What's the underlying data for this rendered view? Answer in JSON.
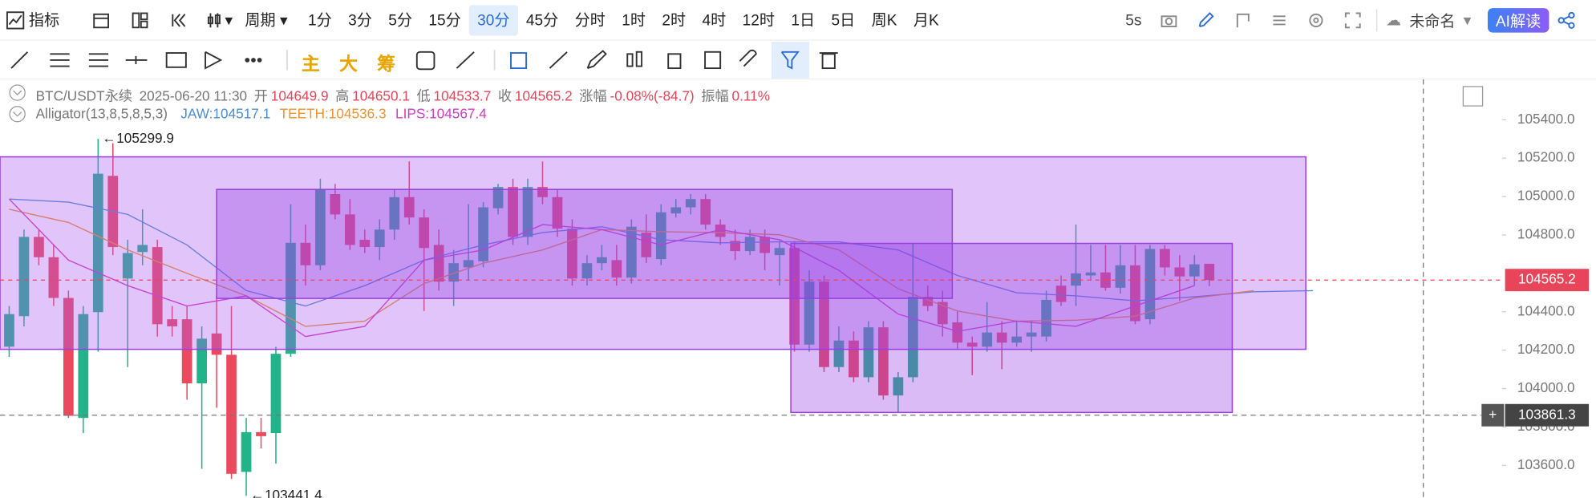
{
  "toolbar": {
    "indicators": "指标",
    "period": "周期",
    "intervals": [
      "1分",
      "3分",
      "5分",
      "15分",
      "30分",
      "45分",
      "分时",
      "1时",
      "2时",
      "4时",
      "12时",
      "1日",
      "5日",
      "周K",
      "月K"
    ],
    "selected_interval": 4,
    "refresh": "5s",
    "layout_name": "未命名",
    "ai_button": "AI解读"
  },
  "drawing_tools": {
    "main": "主",
    "big": "大",
    "chips": "筹"
  },
  "chart_data": {
    "type": "candlestick",
    "symbol": "BTC/USDT永续",
    "time": "2025-06-20 11:30",
    "ohlc_labels": [
      "开",
      "高",
      "低",
      "收"
    ],
    "change_label": "涨幅",
    "change": "-0.08%(-84.7)",
    "amplitude_label": "振幅",
    "amplitude": "0.11%",
    "up_color": "#22b38a",
    "down_color": "#eb4a5e",
    "open": [
      104218,
      104377,
      104790,
      104684,
      104472,
      103847,
      104398,
      105108,
      104573,
      104711,
      104737,
      104361,
      104361,
      104027,
      104287,
      104176,
      103566,
      103773,
      103768,
      104181,
      104759,
      104642,
      105013,
      104907,
      104775,
      104737,
      104828,
      104997,
      104891,
      104748,
      104557,
      104631,
      104663,
      104939,
      105050,
      104790,
      105050,
      104997,
      104833,
      104573,
      104653,
      104669,
      104578,
      104812,
      104674,
      104912,
      104944,
      104987,
      104854,
      104769,
      104716,
      104790,
      104695,
      104732,
      104229,
      104557,
      104112,
      104250,
      104059,
      104319,
      103964,
      104059,
      104478,
      104451,
      104345,
      104239,
      104218,
      104292,
      104239,
      104271,
      104271,
      104536,
      104536,
      104589,
      104605,
      104525,
      104642,
      104361,
      104727,
      104631,
      104584,
      104649.9
    ],
    "high": [
      104430,
      104828,
      104828,
      104748,
      104510,
      104430,
      105299.9,
      105278,
      104775,
      104934,
      104775,
      104430,
      104430,
      104324,
      104483,
      104430,
      103847,
      103847,
      104218,
      104960,
      104854,
      105093,
      105066,
      104987,
      104828,
      104881,
      105040,
      105183,
      104934,
      104828,
      104722,
      104960,
      104971,
      105066,
      105093,
      105093,
      105183,
      105040,
      104881,
      104695,
      104748,
      104748,
      104881,
      104907,
      104960,
      104987,
      105013,
      105013,
      104881,
      104828,
      104828,
      104828,
      104769,
      104769,
      104616,
      104589,
      104324,
      104298,
      104351,
      104351,
      104086,
      104759,
      104536,
      104510,
      104404,
      104271,
      104451,
      104351,
      104351,
      104356,
      104510,
      104589,
      104854,
      104748,
      104748,
      104748,
      104748,
      104748,
      104748,
      104695,
      104695,
      104650.1
    ],
    "low": [
      104165,
      104324,
      104642,
      104430,
      103847,
      103768,
      104192,
      104695,
      104112,
      104642,
      104271,
      104271,
      103942,
      103582,
      103900,
      103529,
      103441.4,
      103688,
      103609,
      104165,
      104536,
      104616,
      104881,
      104722,
      104706,
      104669,
      104775,
      104854,
      104404,
      104510,
      104430,
      104563,
      104631,
      104907,
      104748,
      104748,
      104960,
      104790,
      104536,
      104536,
      104616,
      104536,
      104547,
      104653,
      104642,
      104891,
      104907,
      104828,
      104748,
      104669,
      104695,
      104616,
      104536,
      104192,
      104192,
      104086,
      104086,
      104033,
      104033,
      103942,
      103874,
      104033,
      104404,
      104271,
      104207,
      104070,
      104192,
      104101,
      104218,
      104192,
      104245,
      104430,
      104430,
      104563,
      104510,
      104494,
      104335,
      104335,
      104589,
      104457,
      104536,
      104533.7
    ],
    "close": [
      104388,
      104790,
      104684,
      104472,
      103858,
      104388,
      105119,
      104737,
      104706,
      104748,
      104335,
      104324,
      104027,
      104260,
      104176,
      103556,
      103773,
      103752,
      104181,
      104759,
      104642,
      105034,
      104907,
      104748,
      104737,
      104828,
      104997,
      104891,
      104732,
      104557,
      104653,
      104669,
      104944,
      105050,
      104790,
      105050,
      104997,
      104833,
      104573,
      104653,
      104684,
      104578,
      104843,
      104684,
      104918,
      104944,
      104987,
      104854,
      104790,
      104716,
      104790,
      104706,
      104732,
      104229,
      104557,
      104112,
      104250,
      104059,
      104319,
      103964,
      104059,
      104478,
      104430,
      104335,
      104239,
      104218,
      104292,
      104239,
      104271,
      104292,
      104462,
      104451,
      104600,
      104605,
      104525,
      104642,
      104351,
      104727,
      104631,
      104584,
      104647,
      104565.2
    ],
    "indicator": {
      "name": "Alligator(13,8,5,8,5,3)",
      "series": [
        {
          "name": "JAW:104517.1",
          "color": "#4a8fd8",
          "x": [
            0,
            4,
            8,
            12,
            16,
            20,
            24,
            28,
            32,
            36,
            40,
            44,
            48,
            52,
            56,
            60,
            64,
            68,
            72,
            76,
            80,
            84,
            88
          ],
          "values": [
            104987,
            104971,
            104907,
            104748,
            104510,
            104430,
            104536,
            104669,
            104748,
            104812,
            104843,
            104775,
            104759,
            104764,
            104764,
            104722,
            104589,
            104499,
            104483,
            104457,
            104478,
            104504,
            104510
          ]
        },
        {
          "name": "TEETH:104536.3",
          "color": "#f0922e",
          "x": [
            0,
            4,
            8,
            12,
            16,
            20,
            24,
            28,
            32,
            36,
            40,
            44,
            48,
            52,
            56,
            60,
            64,
            68,
            72,
            76,
            80,
            84
          ],
          "values": [
            104934,
            104865,
            104722,
            104600,
            104483,
            104324,
            104351,
            104547,
            104653,
            104722,
            104828,
            104817,
            104812,
            104801,
            104722,
            104520,
            104404,
            104351,
            104356,
            104377,
            104472,
            104510
          ]
        },
        {
          "name": "LIPS:104567.4",
          "color": "#d43cc6",
          "x": [
            0,
            4,
            8,
            12,
            16,
            20,
            24,
            28,
            32,
            36,
            40,
            44,
            48,
            52,
            56,
            60,
            64,
            68,
            72,
            76,
            80
          ],
          "values": [
            104987,
            104669,
            104536,
            104430,
            104483,
            104271,
            104324,
            104669,
            104722,
            104854,
            104828,
            104748,
            104828,
            104775,
            104616,
            104388,
            104298,
            104351,
            104324,
            104430,
            104536
          ]
        }
      ]
    },
    "crosshair_price": 103861.3,
    "ylim": [
      103430,
      105610
    ],
    "yticks": [
      {
        "value": 105400,
        "label": "105400.0"
      },
      {
        "value": 105200,
        "label": "105200.0"
      },
      {
        "value": 105000,
        "label": "105000.0"
      },
      {
        "value": 104800,
        "label": "104800.0"
      },
      {
        "value": 104400,
        "label": "104400.0"
      },
      {
        "value": 104200,
        "label": "104200.0"
      },
      {
        "value": 104000,
        "label": "104000.0"
      },
      {
        "value": 103800,
        "label": "103800.0"
      },
      {
        "value": 103600,
        "label": "103600.0"
      }
    ]
  }
}
